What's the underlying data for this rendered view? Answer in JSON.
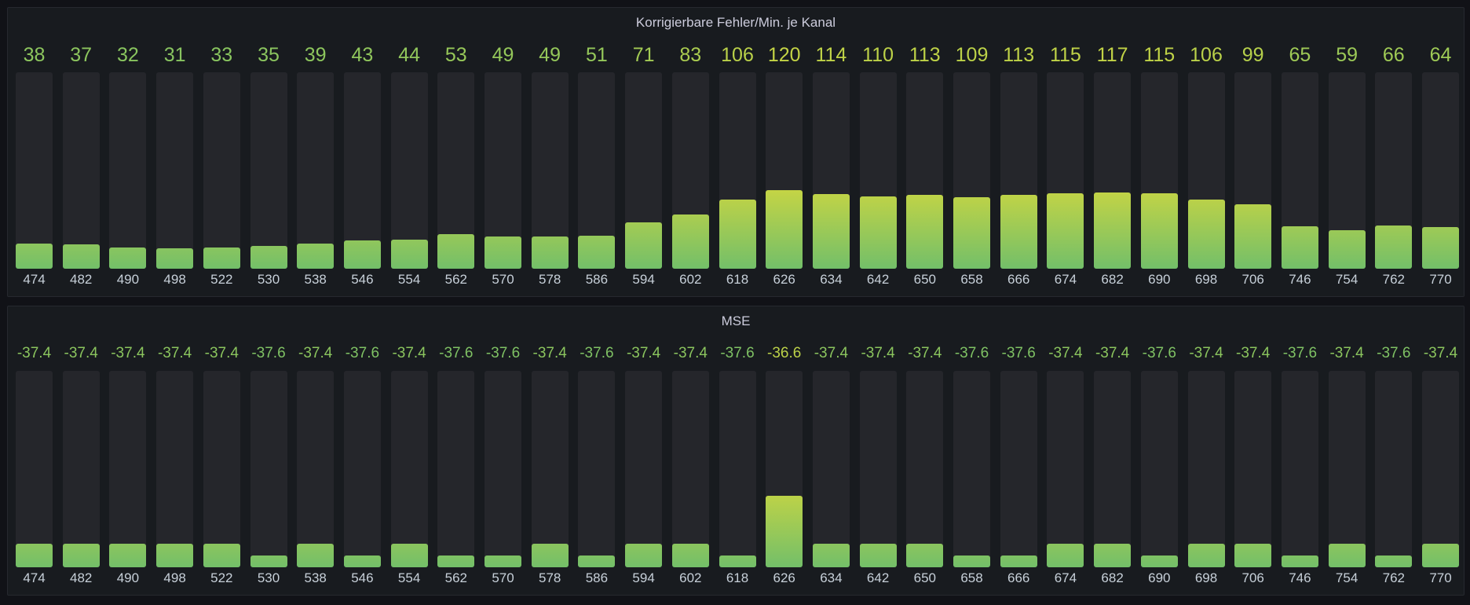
{
  "colors": {
    "green": "#73bf69",
    "yellow": "#d8d93c",
    "background": "#111217",
    "panel": "#181b1f",
    "track": "#25262b"
  },
  "chart_data": [
    {
      "type": "bar",
      "title": "Korrigierbare Fehler/Min. je Kanal",
      "categories": [
        "474",
        "482",
        "490",
        "498",
        "522",
        "530",
        "538",
        "546",
        "554",
        "562",
        "570",
        "578",
        "586",
        "594",
        "602",
        "618",
        "626",
        "634",
        "642",
        "650",
        "658",
        "666",
        "674",
        "682",
        "690",
        "698",
        "706",
        "746",
        "754",
        "762",
        "770"
      ],
      "values": [
        38,
        37,
        32,
        31,
        33,
        35,
        39,
        43,
        44,
        53,
        49,
        49,
        51,
        71,
        83,
        106,
        120,
        114,
        110,
        113,
        109,
        113,
        115,
        117,
        115,
        106,
        99,
        65,
        59,
        66,
        64
      ],
      "value_labels": [
        "38",
        "37",
        "32",
        "31",
        "33",
        "35",
        "39",
        "43",
        "44",
        "53",
        "49",
        "49",
        "51",
        "71",
        "83",
        "106",
        "120",
        "114",
        "110",
        "113",
        "109",
        "113",
        "115",
        "117",
        "115",
        "106",
        "99",
        "65",
        "59",
        "66",
        "64"
      ],
      "ylim": [
        0,
        300
      ],
      "xlabel": "",
      "ylabel": ""
    },
    {
      "type": "bar",
      "title": "MSE",
      "categories": [
        "474",
        "482",
        "490",
        "498",
        "522",
        "530",
        "538",
        "546",
        "554",
        "562",
        "570",
        "578",
        "586",
        "594",
        "602",
        "618",
        "626",
        "634",
        "642",
        "650",
        "658",
        "666",
        "674",
        "682",
        "690",
        "698",
        "706",
        "746",
        "754",
        "762",
        "770"
      ],
      "values": [
        -37.4,
        -37.4,
        -37.4,
        -37.4,
        -37.4,
        -37.6,
        -37.4,
        -37.6,
        -37.4,
        -37.6,
        -37.6,
        -37.4,
        -37.6,
        -37.4,
        -37.4,
        -37.6,
        -36.6,
        -37.4,
        -37.4,
        -37.4,
        -37.6,
        -37.6,
        -37.4,
        -37.4,
        -37.6,
        -37.4,
        -37.4,
        -37.6,
        -37.4,
        -37.6,
        -37.4
      ],
      "value_labels": [
        "-37.4",
        "-37.4",
        "-37.4",
        "-37.4",
        "-37.4",
        "-37.6",
        "-37.4",
        "-37.6",
        "-37.4",
        "-37.6",
        "-37.6",
        "-37.4",
        "-37.6",
        "-37.4",
        "-37.4",
        "-37.6",
        "-36.6",
        "-37.4",
        "-37.4",
        "-37.4",
        "-37.6",
        "-37.6",
        "-37.4",
        "-37.4",
        "-37.6",
        "-37.4",
        "-37.4",
        "-37.6",
        "-37.4",
        "-37.6",
        "-37.4"
      ],
      "ylim": [
        -37.8,
        -34.5
      ],
      "xlabel": "",
      "ylabel": ""
    }
  ]
}
